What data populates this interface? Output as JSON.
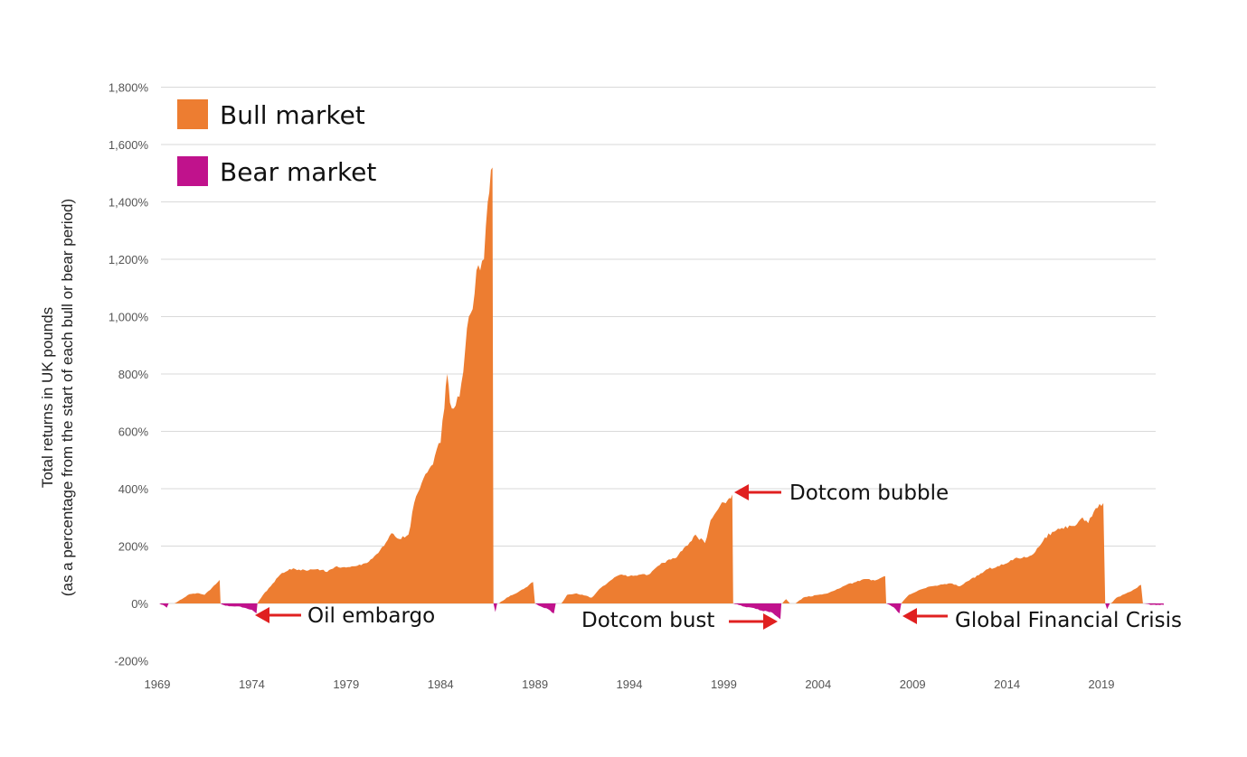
{
  "chart_data": {
    "type": "area",
    "title": "",
    "ylabel": [
      "Total returns in UK pounds",
      "(as a percentage from the start of each bull or bear period)"
    ],
    "xlabel": "",
    "ylim": [
      -200,
      1800
    ],
    "xlim": [
      1969,
      2022.5
    ],
    "grid": true,
    "y_ticks": [
      "-200%",
      "0%",
      "200%",
      "400%",
      "600%",
      "800%",
      "1,000%",
      "1,200%",
      "1,400%",
      "1,600%",
      "1,800%"
    ],
    "y_tick_values": [
      -200,
      0,
      200,
      400,
      600,
      800,
      1000,
      1200,
      1400,
      1600,
      1800
    ],
    "x_ticks": [
      "1969",
      "1974",
      "1979",
      "1984",
      "1989",
      "1994",
      "1999",
      "2004",
      "2009",
      "2014",
      "2019"
    ],
    "x_tick_values": [
      1969,
      1974,
      1979,
      1984,
      1989,
      1994,
      1999,
      2004,
      2009,
      2014,
      2019
    ],
    "legend": {
      "placement": "top-left",
      "entries": [
        {
          "label": "Bull market",
          "color": "#ED7D31"
        },
        {
          "label": "Bear market",
          "color": "#C0128C"
        }
      ]
    },
    "series": [
      {
        "name": "Bull market",
        "color": "#ED7D31",
        "periods": [
          [
            [
              1969.9,
              0
            ],
            [
              1970.3,
              15
            ],
            [
              1970.7,
              32
            ],
            [
              1971.1,
              36
            ],
            [
              1971.5,
              30
            ],
            [
              1971.9,
              55
            ],
            [
              1972.3,
              82
            ],
            [
              1972.35,
              0
            ]
          ],
          [
            [
              1974.3,
              0
            ],
            [
              1974.6,
              30
            ],
            [
              1975.0,
              60
            ],
            [
              1975.5,
              100
            ],
            [
              1976.0,
              120
            ],
            [
              1976.5,
              118
            ],
            [
              1977.0,
              115
            ],
            [
              1977.5,
              120
            ],
            [
              1978.0,
              110
            ],
            [
              1978.5,
              130
            ],
            [
              1979.0,
              125
            ],
            [
              1979.5,
              130
            ],
            [
              1980.0,
              140
            ],
            [
              1980.5,
              165
            ],
            [
              1981.0,
              200
            ],
            [
              1981.4,
              245
            ],
            [
              1981.8,
              225
            ],
            [
              1982.3,
              240
            ],
            [
              1982.6,
              350
            ],
            [
              1983.0,
              420
            ],
            [
              1983.5,
              480
            ],
            [
              1984.0,
              560
            ],
            [
              1984.2,
              680
            ],
            [
              1984.35,
              800
            ],
            [
              1984.5,
              700
            ],
            [
              1984.8,
              690
            ],
            [
              1985.0,
              720
            ],
            [
              1985.3,
              880
            ],
            [
              1985.5,
              1000
            ],
            [
              1985.8,
              1080
            ],
            [
              1986.0,
              1180
            ],
            [
              1986.3,
              1200
            ],
            [
              1986.5,
              1400
            ],
            [
              1986.75,
              1520
            ],
            [
              1986.8,
              0
            ]
          ],
          [
            [
              1987.1,
              0
            ],
            [
              1987.5,
              20
            ],
            [
              1988.0,
              35
            ],
            [
              1988.5,
              55
            ],
            [
              1988.9,
              75
            ],
            [
              1989.0,
              0
            ]
          ],
          [
            [
              1990.4,
              0
            ],
            [
              1990.7,
              30
            ],
            [
              1991.2,
              35
            ],
            [
              1991.6,
              28
            ],
            [
              1992.0,
              20
            ],
            [
              1992.5,
              55
            ],
            [
              1993.0,
              80
            ],
            [
              1993.5,
              100
            ],
            [
              1994.0,
              95
            ],
            [
              1994.5,
              100
            ],
            [
              1995.0,
              100
            ],
            [
              1995.5,
              130
            ],
            [
              1996.0,
              150
            ],
            [
              1996.5,
              160
            ],
            [
              1997.0,
              200
            ],
            [
              1997.5,
              240
            ],
            [
              1998.0,
              210
            ],
            [
              1998.3,
              290
            ],
            [
              1998.8,
              340
            ],
            [
              1999.2,
              360
            ],
            [
              1999.45,
              380
            ],
            [
              1999.5,
              0
            ]
          ],
          [
            [
              2002.1,
              0
            ],
            [
              2002.3,
              15
            ],
            [
              2002.5,
              0
            ]
          ],
          [
            [
              2002.8,
              0
            ],
            [
              2003.2,
              20
            ],
            [
              2004.0,
              30
            ],
            [
              2004.5,
              35
            ],
            [
              2005.0,
              50
            ],
            [
              2005.5,
              65
            ],
            [
              2006.0,
              75
            ],
            [
              2006.5,
              85
            ],
            [
              2007.0,
              80
            ],
            [
              2007.55,
              95
            ],
            [
              2007.6,
              0
            ]
          ],
          [
            [
              2008.4,
              0
            ],
            [
              2008.8,
              30
            ],
            [
              2009.5,
              50
            ],
            [
              2010.0,
              60
            ],
            [
              2011.0,
              70
            ],
            [
              2011.5,
              60
            ],
            [
              2012.0,
              80
            ],
            [
              2013.0,
              120
            ],
            [
              2013.5,
              130
            ],
            [
              2014.0,
              140
            ],
            [
              2014.5,
              160
            ],
            [
              2015.0,
              160
            ],
            [
              2015.5,
              180
            ],
            [
              2016.0,
              230
            ],
            [
              2016.5,
              250
            ],
            [
              2017.0,
              260
            ],
            [
              2017.5,
              270
            ],
            [
              2018.0,
              300
            ],
            [
              2018.3,
              280
            ],
            [
              2018.6,
              320
            ],
            [
              2019.1,
              350
            ],
            [
              2019.2,
              0
            ]
          ],
          [
            [
              2019.5,
              0
            ],
            [
              2019.8,
              20
            ],
            [
              2020.5,
              40
            ],
            [
              2021.1,
              65
            ],
            [
              2021.2,
              0
            ]
          ]
        ]
      },
      {
        "name": "Bear market",
        "color": "#C0128C",
        "periods": [
          [
            [
              1969.1,
              0
            ],
            [
              1969.3,
              -5
            ],
            [
              1969.5,
              -15
            ],
            [
              1969.6,
              0
            ]
          ],
          [
            [
              1972.35,
              0
            ],
            [
              1972.6,
              -8
            ],
            [
              1973.2,
              -10
            ],
            [
              1973.6,
              -15
            ],
            [
              1974.0,
              -22
            ],
            [
              1974.25,
              -35
            ],
            [
              1974.3,
              0
            ]
          ],
          [
            [
              1986.8,
              0
            ],
            [
              1986.9,
              -30
            ],
            [
              1987.0,
              0
            ]
          ],
          [
            [
              1989.0,
              0
            ],
            [
              1989.3,
              -10
            ],
            [
              1989.7,
              -20
            ],
            [
              1990.0,
              -35
            ],
            [
              1990.1,
              0
            ]
          ],
          [
            [
              1999.5,
              0
            ],
            [
              2000.0,
              -10
            ],
            [
              2000.5,
              -15
            ],
            [
              2001.0,
              -25
            ],
            [
              2001.5,
              -30
            ],
            [
              2001.9,
              -50
            ],
            [
              2002.0,
              -55
            ],
            [
              2002.05,
              0
            ]
          ],
          [
            [
              2007.6,
              0
            ],
            [
              2007.9,
              -10
            ],
            [
              2008.1,
              -20
            ],
            [
              2008.3,
              -35
            ],
            [
              2008.4,
              0
            ]
          ],
          [
            [
              2019.2,
              0
            ],
            [
              2019.3,
              -20
            ],
            [
              2019.45,
              0
            ]
          ],
          [
            [
              2021.2,
              0
            ],
            [
              2021.6,
              -5
            ],
            [
              2022.3,
              -5
            ],
            [
              2022.3,
              0
            ]
          ]
        ]
      }
    ],
    "annotations": [
      {
        "text": "Oil embargo",
        "x": 1974.3,
        "y": -40,
        "arrow": "left"
      },
      {
        "text": "Dotcom bubble",
        "x": 1999.5,
        "y": 385,
        "arrow": "left"
      },
      {
        "text": "Dotcom bust",
        "x": 2002.0,
        "y": -60,
        "arrow": "right"
      },
      {
        "text": "Global Financial Crisis",
        "x": 2008.4,
        "y": -40,
        "arrow": "left"
      }
    ],
    "arrow_color": "#E02020"
  }
}
